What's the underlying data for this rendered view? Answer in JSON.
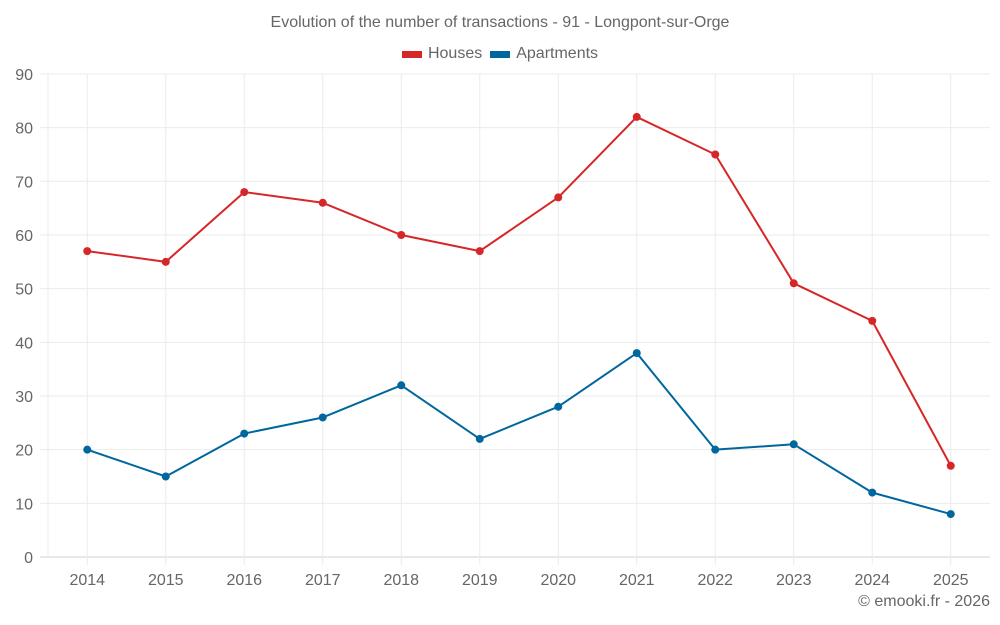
{
  "chart_data": {
    "type": "line",
    "title": "Evolution of the number of transactions - 91 - Longpont-sur-Orge",
    "xlabel": "",
    "ylabel": "",
    "x": [
      "2014",
      "2015",
      "2016",
      "2017",
      "2018",
      "2019",
      "2020",
      "2021",
      "2022",
      "2023",
      "2024",
      "2025"
    ],
    "ylim": [
      0,
      90
    ],
    "yticks": [
      "0",
      "10",
      "20",
      "30",
      "40",
      "50",
      "60",
      "70",
      "80",
      "90"
    ],
    "grid": true,
    "legend": "top-center",
    "series": [
      {
        "name": "Houses",
        "color": "#d62728",
        "values": [
          57,
          55,
          68,
          66,
          60,
          57,
          67,
          82,
          75,
          51,
          44,
          17
        ]
      },
      {
        "name": "Apartments",
        "color": "#00679e",
        "values": [
          20,
          15,
          23,
          26,
          32,
          22,
          28,
          38,
          20,
          21,
          12,
          8
        ]
      }
    ]
  },
  "footer": "© emooki.fr - 2026"
}
